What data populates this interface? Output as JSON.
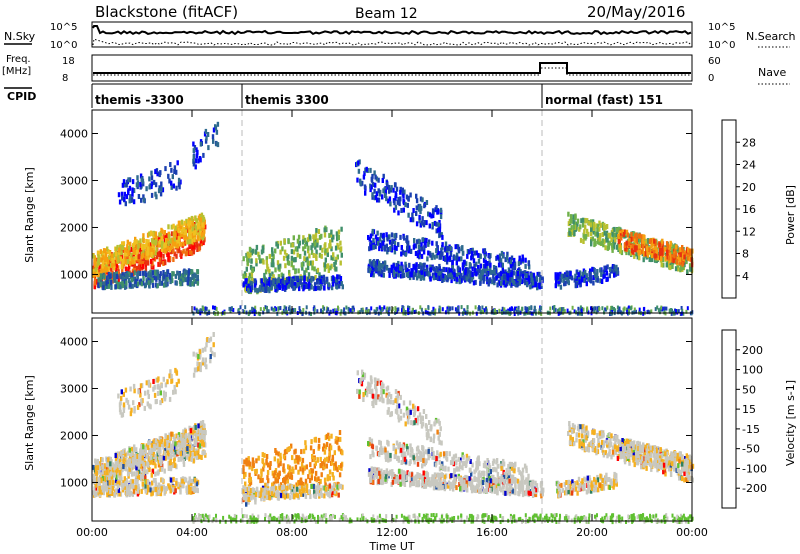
{
  "header": {
    "station": "Blackstone (fitACF)",
    "beam": "Beam 12",
    "date": "20/May/2016"
  },
  "left_labels": {
    "nsky": "N.Sky",
    "freq": "Freq.",
    "freq_unit": "[MHz]",
    "cpid": "CPID"
  },
  "right_labels": {
    "nsearch": "N.Search",
    "nave": "Nave"
  },
  "noise_axis": {
    "top": "10^5",
    "bottom": "10^0"
  },
  "freq_axis": {
    "top": "18",
    "bottom": "8"
  },
  "nave_axis": {
    "top": "60",
    "bottom": "0"
  },
  "cpid_segments": [
    {
      "label": "themis -3300",
      "start_hr": 0
    },
    {
      "label": "themis 3300",
      "start_hr": 6
    },
    {
      "label": "normal (fast) 151",
      "start_hr": 18
    }
  ],
  "chart_data": [
    {
      "type": "heatmap",
      "panel": "power",
      "ylabel": "Slant Range [km]",
      "x_ticks": [
        "00:00",
        "04:00",
        "08:00",
        "12:00",
        "16:00",
        "20:00",
        "00:00"
      ],
      "y_ticks": [
        1000,
        2000,
        3000,
        4000
      ],
      "xlim_hr": [
        0,
        24
      ],
      "ylim_km": [
        180,
        4500
      ],
      "colorbar": {
        "label": "Power [dB]",
        "ticks": [
          4,
          8,
          12,
          16,
          20,
          24,
          28
        ],
        "range": [
          0,
          32
        ]
      }
    },
    {
      "type": "heatmap",
      "panel": "velocity",
      "ylabel": "Slant Range [km]",
      "xlabel": "Time UT",
      "x_ticks": [
        "00:00",
        "04:00",
        "08:00",
        "12:00",
        "16:00",
        "20:00",
        "00:00"
      ],
      "y_ticks": [
        1000,
        2000,
        3000,
        4000
      ],
      "xlim_hr": [
        0,
        24
      ],
      "ylim_km": [
        180,
        4500
      ],
      "colorbar": {
        "label": "Velocity [m s-1]",
        "ticks": [
          200,
          100,
          50,
          15,
          -15,
          -50,
          -100,
          -200
        ]
      }
    }
  ],
  "colors": {
    "power_scale": [
      "#0000ff",
      "#1a3fb0",
      "#2e6a8f",
      "#3f8f6a",
      "#6fb04a",
      "#b8c030",
      "#f0c020",
      "#f5a010",
      "#f07010",
      "#e83010",
      "#ff0000"
    ],
    "velocity_scale": [
      "#0000cc",
      "#1f4fa0",
      "#2e8060",
      "#5fc030",
      "#c8c8c0",
      "#c8c8c0",
      "#f5b020",
      "#f08010",
      "#e84010",
      "#ff0000"
    ]
  }
}
